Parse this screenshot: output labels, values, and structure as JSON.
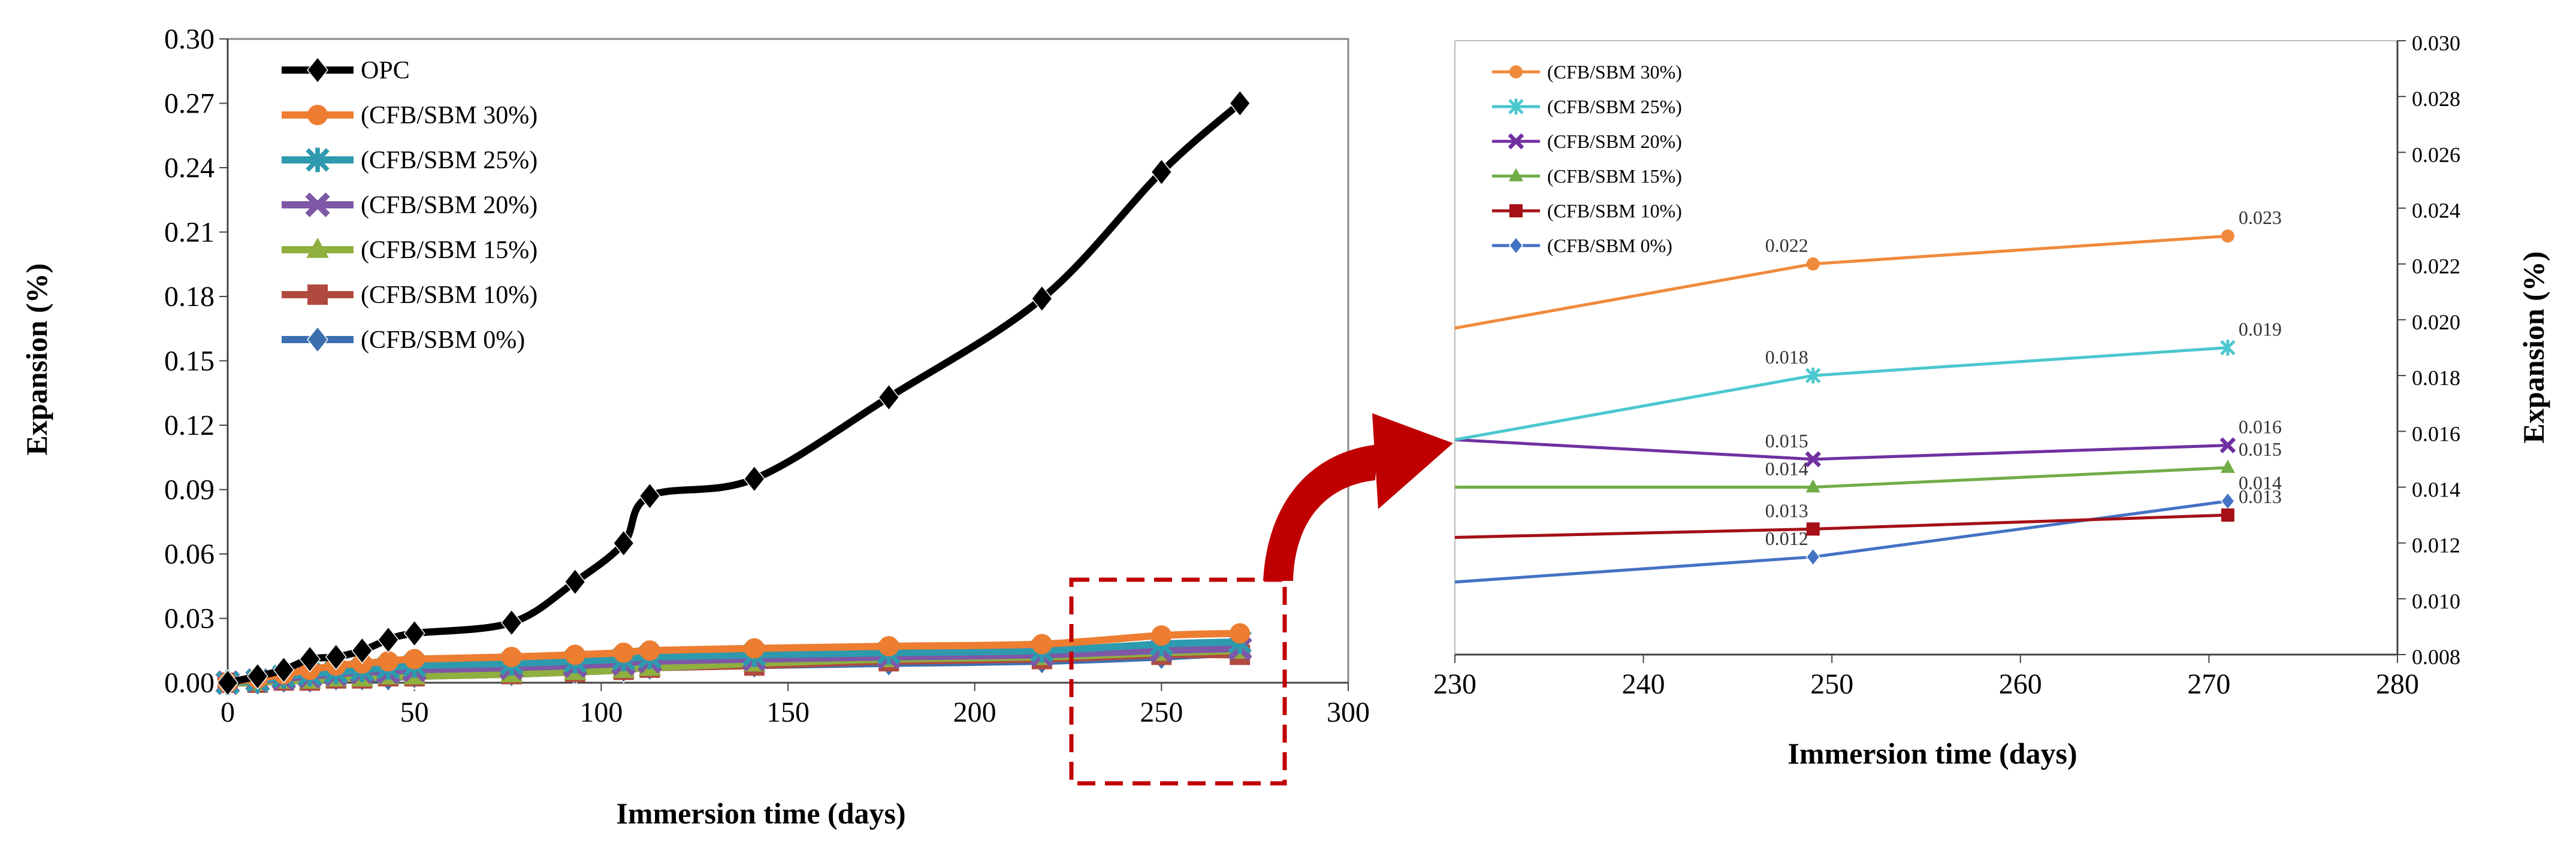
{
  "chart_data": [
    {
      "type": "line",
      "name": "full-range",
      "xlabel": "Immersion time (days)",
      "ylabel": "Expansion (%)",
      "xlim": [
        0,
        300
      ],
      "ylim": [
        0,
        0.3
      ],
      "xticks": [
        "0",
        "50",
        "100",
        "150",
        "200",
        "250",
        "300"
      ],
      "yticks": [
        "0.00",
        "0.03",
        "0.06",
        "0.09",
        "0.12",
        "0.15",
        "0.18",
        "0.21",
        "0.24",
        "0.27",
        "0.30"
      ],
      "legend_position": "top-left",
      "series": [
        {
          "name": "OPC",
          "color": "#000000",
          "marker": "diamond",
          "x": [
            0,
            8,
            15,
            22,
            29,
            36,
            43,
            50,
            76,
            93,
            106,
            113,
            141,
            177,
            218,
            250,
            271
          ],
          "y": [
            0.0,
            0.003,
            0.006,
            0.011,
            0.012,
            0.015,
            0.02,
            0.023,
            0.028,
            0.047,
            0.065,
            0.087,
            0.095,
            0.133,
            0.179,
            0.238,
            0.27
          ]
        },
        {
          "name": "(CFB/SBM 30%)",
          "color": "#ED7D31",
          "marker": "circle",
          "x": [
            0,
            8,
            15,
            22,
            29,
            36,
            43,
            50,
            76,
            93,
            106,
            113,
            141,
            177,
            218,
            250,
            271
          ],
          "y": [
            0.0,
            0.002,
            0.004,
            0.006,
            0.008,
            0.009,
            0.01,
            0.011,
            0.012,
            0.013,
            0.014,
            0.015,
            0.016,
            0.017,
            0.018,
            0.022,
            0.023
          ]
        },
        {
          "name": "(CFB/SBM 25%)",
          "color": "#2E9AAE",
          "marker": "star",
          "x": [
            0,
            8,
            15,
            22,
            29,
            36,
            43,
            50,
            76,
            93,
            106,
            113,
            141,
            177,
            218,
            250,
            271
          ],
          "y": [
            0.0,
            0.001,
            0.003,
            0.004,
            0.005,
            0.006,
            0.007,
            0.008,
            0.009,
            0.01,
            0.011,
            0.012,
            0.013,
            0.014,
            0.015,
            0.018,
            0.019
          ]
        },
        {
          "name": "(CFB/SBM 20%)",
          "color": "#7E57A6",
          "marker": "x",
          "x": [
            0,
            8,
            15,
            22,
            29,
            36,
            43,
            50,
            76,
            93,
            106,
            113,
            141,
            177,
            218,
            250,
            271
          ],
          "y": [
            0.0,
            0.001,
            0.002,
            0.003,
            0.004,
            0.005,
            0.005,
            0.006,
            0.007,
            0.008,
            0.009,
            0.01,
            0.011,
            0.012,
            0.013,
            0.015,
            0.016
          ]
        },
        {
          "name": "(CFB/SBM 15%)",
          "color": "#8FAF3F",
          "marker": "triangle",
          "x": [
            0,
            8,
            15,
            22,
            29,
            36,
            43,
            50,
            76,
            93,
            106,
            113,
            141,
            177,
            218,
            250,
            271
          ],
          "y": [
            0.0,
            0.0,
            0.001,
            0.001,
            0.002,
            0.002,
            0.003,
            0.003,
            0.004,
            0.005,
            0.006,
            0.007,
            0.009,
            0.011,
            0.012,
            0.014,
            0.015
          ]
        },
        {
          "name": "(CFB/SBM 10%)",
          "color": "#B04A3F",
          "marker": "square",
          "x": [
            0,
            8,
            15,
            22,
            29,
            36,
            43,
            50,
            76,
            93,
            106,
            113,
            141,
            177,
            218,
            250,
            271
          ],
          "y": [
            0.0,
            0.0,
            0.001,
            0.001,
            0.002,
            0.002,
            0.003,
            0.003,
            0.004,
            0.005,
            0.006,
            0.007,
            0.008,
            0.01,
            0.011,
            0.013,
            0.013
          ]
        },
        {
          "name": "(CFB/SBM   0%)",
          "color": "#3C6FB0",
          "marker": "diamond",
          "x": [
            0,
            8,
            15,
            22,
            29,
            36,
            43,
            50,
            76,
            93,
            106,
            113,
            141,
            177,
            218,
            250,
            271
          ],
          "y": [
            0.0,
            0.0,
            0.001,
            0.001,
            0.002,
            0.002,
            0.002,
            0.003,
            0.004,
            0.005,
            0.006,
            0.007,
            0.008,
            0.009,
            0.01,
            0.012,
            0.014
          ]
        }
      ]
    },
    {
      "type": "line",
      "name": "zoom",
      "xlabel": "Immersion time (days)",
      "ylabel": "Expansion  (%)",
      "xlim": [
        230,
        280
      ],
      "ylim": [
        0.008,
        0.03
      ],
      "xticks": [
        "230",
        "240",
        "250",
        "260",
        "270",
        "280"
      ],
      "yticks": [
        "0.008",
        "0.010",
        "0.012",
        "0.014",
        "0.016",
        "0.018",
        "0.020",
        "0.022",
        "0.024",
        "0.026",
        "0.028",
        "0.030"
      ],
      "legend_position": "top-left",
      "series": [
        {
          "name": "(CFB/SBM 30%)",
          "color": "#F08A3C",
          "marker": "circle",
          "x": [
            230,
            249,
            271
          ],
          "y": [
            0.0197,
            0.022,
            0.023
          ],
          "labels": [
            "",
            "0.022",
            "0.023"
          ]
        },
        {
          "name": "(CFB/SBM 25%)",
          "color": "#4CC7CF",
          "marker": "star",
          "x": [
            230,
            249,
            271
          ],
          "y": [
            0.0157,
            0.018,
            0.019
          ],
          "labels": [
            "",
            "0.018",
            "0.019"
          ]
        },
        {
          "name": "(CFB/SBM 20%)",
          "color": "#7030A0",
          "marker": "x",
          "x": [
            230,
            249,
            271
          ],
          "y": [
            0.0157,
            0.015,
            0.0155
          ],
          "labels": [
            "",
            "0.015",
            "0.016"
          ]
        },
        {
          "name": "(CFB/SBM 15%)",
          "color": "#70AD47",
          "marker": "triangle",
          "x": [
            230,
            249,
            271
          ],
          "y": [
            0.014,
            0.014,
            0.0147
          ],
          "labels": [
            "",
            "0.014",
            "0.015"
          ]
        },
        {
          "name": "(CFB/SBM 10%)",
          "color": "#A50F15",
          "marker": "square",
          "x": [
            230,
            249,
            271
          ],
          "y": [
            0.0122,
            0.0125,
            0.013
          ],
          "labels": [
            "",
            "0.013",
            "0.013"
          ]
        },
        {
          "name": "(CFB/SBM   0%)",
          "color": "#4472C4",
          "marker": "diamond",
          "x": [
            230,
            249,
            271
          ],
          "y": [
            0.0106,
            0.0115,
            0.0135
          ],
          "labels": [
            "",
            "0.012",
            "0.014"
          ]
        }
      ]
    }
  ]
}
